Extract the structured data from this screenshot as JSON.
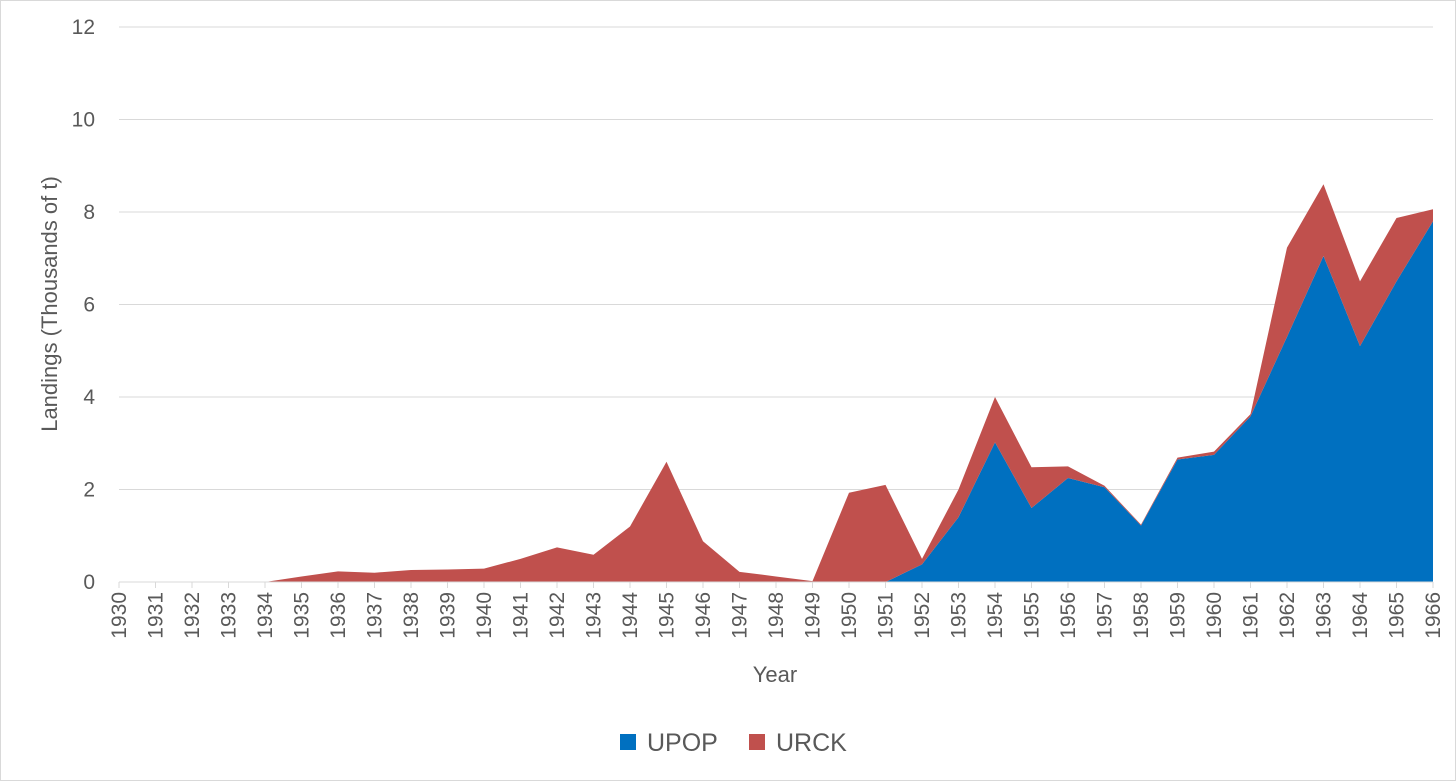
{
  "chart_data": {
    "type": "area",
    "stacked": true,
    "title": "",
    "xlabel": "Year",
    "ylabel": "Landings (Thousands of t)",
    "ylim": [
      0,
      12
    ],
    "yticks": [
      "0",
      "2",
      "4",
      "6",
      "8",
      "10",
      "12"
    ],
    "grid": true,
    "legend_position": "bottom",
    "categories": [
      "1930",
      "1931",
      "1932",
      "1933",
      "1934",
      "1935",
      "1936",
      "1937",
      "1938",
      "1939",
      "1940",
      "1941",
      "1942",
      "1943",
      "1944",
      "1945",
      "1946",
      "1947",
      "1948",
      "1949",
      "1950",
      "1951",
      "1952",
      "1953",
      "1954",
      "1955",
      "1956",
      "1957",
      "1958",
      "1959",
      "1960",
      "1961",
      "1962",
      "1963",
      "1964",
      "1965",
      "1966"
    ],
    "series": [
      {
        "name": "UPOP",
        "color": "#0070c0",
        "values": [
          0,
          0,
          0,
          0,
          0,
          0,
          0,
          0,
          0,
          0,
          0,
          0,
          0,
          0,
          0,
          0,
          0,
          0,
          0,
          0,
          0,
          0,
          0.38,
          1.4,
          3.02,
          1.6,
          2.25,
          2.05,
          1.22,
          2.65,
          2.75,
          3.58,
          5.3,
          7.05,
          5.1,
          6.5,
          7.8
        ]
      },
      {
        "name": "URCK",
        "color": "#c0504d",
        "values": [
          0,
          0,
          0,
          0,
          0,
          0.12,
          0.23,
          0.2,
          0.26,
          0.27,
          0.29,
          0.5,
          0.75,
          0.59,
          1.2,
          2.6,
          0.88,
          0.22,
          0.12,
          0.02,
          1.93,
          2.1,
          0.12,
          0.6,
          0.98,
          0.88,
          0.25,
          0.03,
          0.02,
          0.04,
          0.07,
          0.05,
          1.93,
          1.55,
          1.4,
          1.37,
          0.26
        ]
      }
    ]
  }
}
